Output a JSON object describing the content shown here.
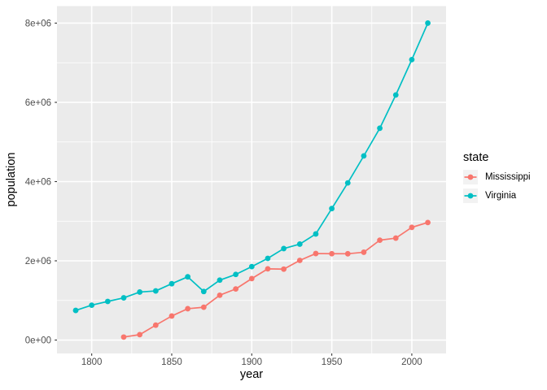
{
  "figure": {
    "background": "#FFFFFF",
    "panel_background": "#EBEBEB",
    "grid_color": "#FFFFFF",
    "axis_text_color": "#4D4D4D",
    "tick_mark_color": "#333333",
    "legend_key_background": "#F2F2F2"
  },
  "chart_data": {
    "type": "line",
    "title": "",
    "xlabel": "year",
    "ylabel": "population",
    "xlim": [
      1778.3,
      2021.4
    ],
    "ylim": [
      -338000,
      8430000
    ],
    "grid": true,
    "x_ticks": {
      "values": [
        1800,
        1850,
        1900,
        1950,
        2000
      ],
      "labels": [
        "1800",
        "1850",
        "1900",
        "1950",
        "2000"
      ]
    },
    "y_ticks": {
      "values": [
        0,
        2000000,
        4000000,
        6000000,
        8000000
      ],
      "labels": [
        "0e+00",
        "2e+06",
        "4e+06",
        "6e+06",
        "8e+06"
      ]
    },
    "x_minor": [
      1825,
      1875,
      1925,
      1975
    ],
    "y_minor": [
      1000000,
      3000000,
      5000000,
      7000000
    ],
    "legend": {
      "title": "state",
      "position": "right"
    },
    "series": [
      {
        "name": "Mississippi",
        "color": "#F8766D",
        "points": [
          [
            1820,
            75448
          ],
          [
            1830,
            136621
          ],
          [
            1840,
            375651
          ],
          [
            1850,
            606526
          ],
          [
            1860,
            791305
          ],
          [
            1870,
            827922
          ],
          [
            1880,
            1131597
          ],
          [
            1890,
            1289600
          ],
          [
            1900,
            1551270
          ],
          [
            1910,
            1797114
          ],
          [
            1920,
            1790618
          ],
          [
            1930,
            2009821
          ],
          [
            1940,
            2183796
          ],
          [
            1950,
            2178914
          ],
          [
            1960,
            2178141
          ],
          [
            1970,
            2216912
          ],
          [
            1980,
            2520638
          ],
          [
            1990,
            2573216
          ],
          [
            2000,
            2844658
          ],
          [
            2010,
            2967297
          ]
        ]
      },
      {
        "name": "Virginia",
        "color": "#00BFC4",
        "points": [
          [
            1790,
            747610
          ],
          [
            1800,
            880200
          ],
          [
            1810,
            974600
          ],
          [
            1820,
            1065366
          ],
          [
            1830,
            1211405
          ],
          [
            1840,
            1239797
          ],
          [
            1850,
            1421661
          ],
          [
            1860,
            1596318
          ],
          [
            1870,
            1225163
          ],
          [
            1880,
            1512565
          ],
          [
            1890,
            1655980
          ],
          [
            1900,
            1854184
          ],
          [
            1910,
            2061612
          ],
          [
            1920,
            2309187
          ],
          [
            1930,
            2421851
          ],
          [
            1940,
            2677773
          ],
          [
            1950,
            3318680
          ],
          [
            1960,
            3966949
          ],
          [
            1970,
            4648494
          ],
          [
            1980,
            5346818
          ],
          [
            1990,
            6187358
          ],
          [
            2000,
            7078515
          ],
          [
            2010,
            8001024
          ]
        ]
      }
    ]
  }
}
